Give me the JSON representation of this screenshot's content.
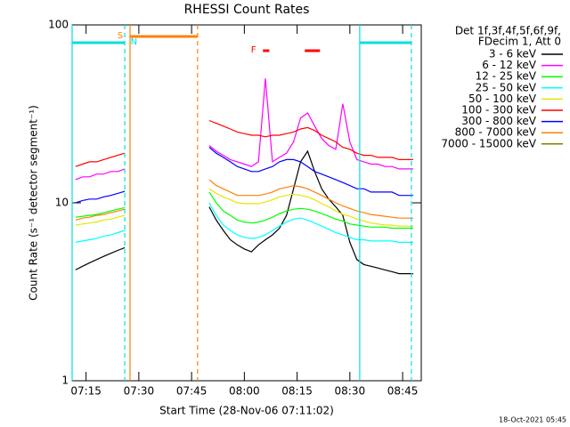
{
  "chart_data": {
    "type": "line",
    "title": "RHESSI Count Rates",
    "xlabel": "Start Time (28-Nov-06 07:11:02)",
    "ylabel": "Count Rate (s⁻¹ detector segment⁻¹)",
    "footer": "18-Oct-2021 05:45",
    "legend_header": [
      "Det 1f,3f,4f,5f,6f,9f,",
      "FDecim 1, Att 0"
    ],
    "log_y": true,
    "xlim": [
      431.04,
      530.3
    ],
    "ylim": [
      1,
      100
    ],
    "yticks": [
      1,
      10,
      100
    ],
    "xticks": [
      {
        "value": 435,
        "label": "07:15"
      },
      {
        "value": 450,
        "label": "07:30"
      },
      {
        "value": 465,
        "label": "07:45"
      },
      {
        "value": 480,
        "label": "08:00"
      },
      {
        "value": 495,
        "label": "08:15"
      },
      {
        "value": 510,
        "label": "08:30"
      },
      {
        "value": 525,
        "label": "08:45"
      }
    ],
    "x": [
      432,
      434,
      436,
      438,
      440,
      442,
      444,
      446,
      448,
      470,
      472,
      474,
      476,
      478,
      480,
      482,
      484,
      486,
      488,
      490,
      492,
      494,
      496,
      498,
      500,
      502,
      504,
      506,
      508,
      510,
      512,
      514,
      516,
      518,
      520,
      522,
      524,
      526,
      528
    ],
    "series": [
      {
        "name": "3 - 6 keV",
        "color": "#000000",
        "values": [
          4.2,
          4.4,
          4.6,
          4.8,
          5,
          5.2,
          5.4,
          5.6,
          null,
          9.5,
          8,
          7,
          6.2,
          5.8,
          5.5,
          5.3,
          5.8,
          6.2,
          6.6,
          7.2,
          8.5,
          12,
          17,
          19.5,
          15,
          12,
          10.5,
          9.5,
          8.5,
          6,
          4.8,
          4.5,
          4.4,
          4.3,
          4.2,
          4.1,
          4,
          4,
          4
        ]
      },
      {
        "name": "6 - 12 keV",
        "color": "#ff00ff",
        "values": [
          13.5,
          14,
          14,
          14.5,
          14.5,
          15,
          15,
          15.5,
          null,
          21,
          19.5,
          18.5,
          17.5,
          17,
          16.5,
          16,
          17,
          50,
          17,
          18,
          19,
          22,
          30,
          32,
          27,
          23,
          21,
          20,
          36,
          22,
          17.5,
          17,
          16.5,
          16.5,
          16,
          16,
          15.5,
          15.5,
          15.5
        ]
      },
      {
        "name": "12 - 25 keV",
        "color": "#00ff00",
        "values": [
          8.3,
          8.4,
          8.5,
          8.6,
          8.8,
          9,
          9.2,
          9.4,
          null,
          11.5,
          10,
          9,
          8.5,
          8,
          7.8,
          7.7,
          7.8,
          8,
          8.3,
          8.7,
          9,
          9.2,
          9.3,
          9.2,
          9,
          8.7,
          8.4,
          8.1,
          7.9,
          7.6,
          7.5,
          7.4,
          7.3,
          7.3,
          7.3,
          7.2,
          7.2,
          7.2,
          7.2
        ]
      },
      {
        "name": "25 - 50 keV",
        "color": "#00ffff",
        "values": [
          6,
          6.1,
          6.2,
          6.3,
          6.5,
          6.6,
          6.8,
          7,
          null,
          10,
          8.5,
          7.5,
          7,
          6.6,
          6.4,
          6.3,
          6.4,
          6.6,
          7,
          7.4,
          7.8,
          8.1,
          8.2,
          8,
          7.7,
          7.4,
          7.1,
          6.8,
          6.6,
          6.4,
          6.2,
          6.2,
          6.1,
          6.1,
          6.1,
          6.1,
          6,
          6,
          6
        ]
      },
      {
        "name": "50 - 100 keV",
        "color": "#e6e600",
        "values": [
          7.5,
          7.6,
          7.7,
          7.8,
          8,
          8.1,
          8.3,
          8.5,
          null,
          12,
          11.3,
          10.8,
          10.4,
          10,
          9.9,
          9.9,
          9.9,
          10.1,
          10.4,
          10.8,
          11,
          11.2,
          11,
          10.8,
          10.4,
          9.9,
          9.5,
          9,
          8.6,
          8.4,
          8.1,
          7.9,
          7.7,
          7.6,
          7.5,
          7.5,
          7.4,
          7.4,
          7.4
        ]
      },
      {
        "name": "100 - 300 keV",
        "color": "#ff0000",
        "values": [
          16,
          16.5,
          17,
          17,
          17.5,
          18,
          18.5,
          19,
          null,
          29,
          28,
          27,
          26,
          25,
          24.5,
          24,
          24,
          23.5,
          24,
          24,
          24.5,
          25,
          26,
          26.5,
          25.5,
          24,
          23,
          22,
          20.5,
          20,
          19,
          18.5,
          18.5,
          18,
          18,
          18,
          17.5,
          17.5,
          17.5
        ]
      },
      {
        "name": "300 - 800 keV",
        "color": "#0000ff",
        "values": [
          10,
          10.3,
          10.5,
          10.5,
          10.8,
          11,
          11.3,
          11.6,
          null,
          20.5,
          19,
          18,
          17,
          16,
          15.5,
          15,
          15,
          15.5,
          16,
          17,
          17.5,
          17.5,
          17,
          16,
          15,
          14.5,
          14,
          13.5,
          13,
          12.5,
          12,
          12,
          11.5,
          11.5,
          11.5,
          11.5,
          11,
          11,
          11
        ]
      },
      {
        "name": "800 - 7000 keV",
        "color": "#ff8000",
        "values": [
          8,
          8.2,
          8.3,
          8.5,
          8.6,
          8.8,
          9,
          9.2,
          null,
          13.5,
          12.5,
          12,
          11.5,
          11,
          11,
          11,
          11,
          11.2,
          11.5,
          12,
          12.2,
          12.5,
          12.3,
          12,
          11.5,
          11,
          10.5,
          10,
          9.6,
          9.3,
          9,
          8.8,
          8.6,
          8.5,
          8.4,
          8.3,
          8.2,
          8.2,
          8.2
        ]
      },
      {
        "name": "7000 - 15000 keV",
        "color": "#808000",
        "values": [
          null,
          null,
          null,
          null,
          null,
          null,
          null,
          null,
          null,
          null,
          null,
          null,
          null,
          null,
          null,
          null,
          null,
          null,
          null,
          null,
          null,
          null,
          null,
          null,
          null,
          null,
          null,
          null,
          null,
          null,
          null,
          null,
          null,
          null,
          null,
          null,
          null,
          null,
          null
        ]
      }
    ],
    "markers": [
      {
        "x": 431.04,
        "color": "#00e0e0",
        "dashed": false
      },
      {
        "x": 446,
        "color": "#00e0e0",
        "dashed": true
      },
      {
        "x": 447.5,
        "color": "#ff8000",
        "dashed": false
      },
      {
        "x": 466.7,
        "color": "#ff8000",
        "dashed": true
      },
      {
        "x": 512.8,
        "color": "#00e0e0",
        "dashed": false
      },
      {
        "x": 527.5,
        "color": "#00e0e0",
        "dashed": true
      }
    ],
    "flags": [
      {
        "x": [
          431.04,
          446
        ],
        "color": "#00e0e0",
        "row": 1
      },
      {
        "x": [
          447.5,
          466.7
        ],
        "color": "#ff8000",
        "row": 0
      },
      {
        "x": [
          512.8,
          527.5
        ],
        "color": "#00e0e0",
        "row": 1
      },
      {
        "x": [
          485.3,
          487.1
        ],
        "color": "#ff0000",
        "row": 2
      },
      {
        "x": [
          497.2,
          501.5
        ],
        "color": "#ff0000",
        "row": 2
      }
    ],
    "annotations": [
      {
        "text": "S",
        "x": 444.7,
        "color": "#ff8000",
        "row": 0
      },
      {
        "text": "N",
        "x": 448.6,
        "color": "#00e0e0",
        "row": 1
      },
      {
        "text": "F",
        "x": 482.6,
        "color": "#ff0000",
        "row": 2
      }
    ]
  }
}
